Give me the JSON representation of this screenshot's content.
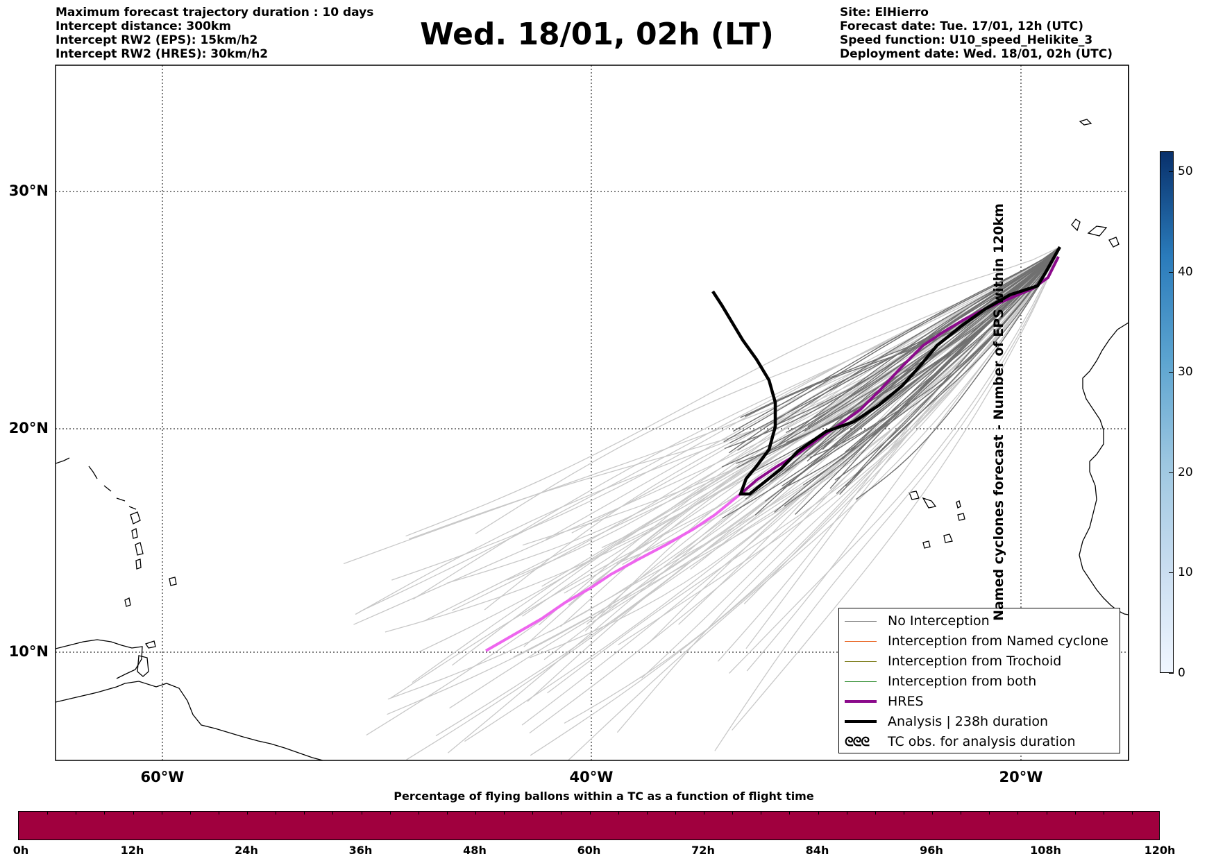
{
  "header_left": {
    "line1": "Maximum forecast trajectory duration : 10 days",
    "line2": "Intercept distance: 300km",
    "line3": "Intercept RW2 (EPS):  15km/h2",
    "line4": "Intercept RW2 (HRES): 30km/h2"
  },
  "title": "Wed. 18/01, 02h (LT)",
  "header_right": {
    "site": "Site: ElHierro",
    "forecast_date": "Forecast date: Tue. 17/01, 12h (UTC)",
    "speed_function": "Speed function: U10_speed_Helikite_3",
    "deployment_date": "Deployment date: Wed. 18/01, 02h (UTC)"
  },
  "map": {
    "lon_range": [
      -65,
      15
    ],
    "lat_range": [
      5,
      34
    ],
    "lon_ticks": [
      "60°W",
      "40°W",
      "20°W"
    ],
    "lat_ticks": [
      "30°N",
      "20°N",
      "10°N"
    ],
    "grid": "dotted"
  },
  "legend": {
    "no_interception": "No Interception",
    "named_cyclone": "Interception from Named cyclone",
    "trochoid": "Interception from Trochoid",
    "both": "Interception from both",
    "hres": "HRES",
    "analysis": "Analysis | 238h duration",
    "tc_obs": "TC obs. for analysis duration",
    "tc_obs_symbol": "ᘓᘓᘓ",
    "colors": {
      "no_interception": "#707070",
      "named_cyclone": "#e8601c",
      "trochoid": "#808020",
      "both": "#2e8b2e",
      "hres": "#8b0a8b",
      "analysis": "#000000"
    }
  },
  "colorbar": {
    "label": "Named cyclones forecast - Number of EPS within 120km",
    "ticks": [
      "0",
      "10",
      "20",
      "30",
      "40",
      "50"
    ],
    "range": [
      0,
      52
    ]
  },
  "time_bar": {
    "title": "Percentage of flying ballons within a TC as a function of flight time",
    "ticks": [
      "0h",
      "12h",
      "24h",
      "36h",
      "48h",
      "60h",
      "72h",
      "84h",
      "96h",
      "108h",
      "120h"
    ],
    "fill_color": "#a0003e"
  }
}
